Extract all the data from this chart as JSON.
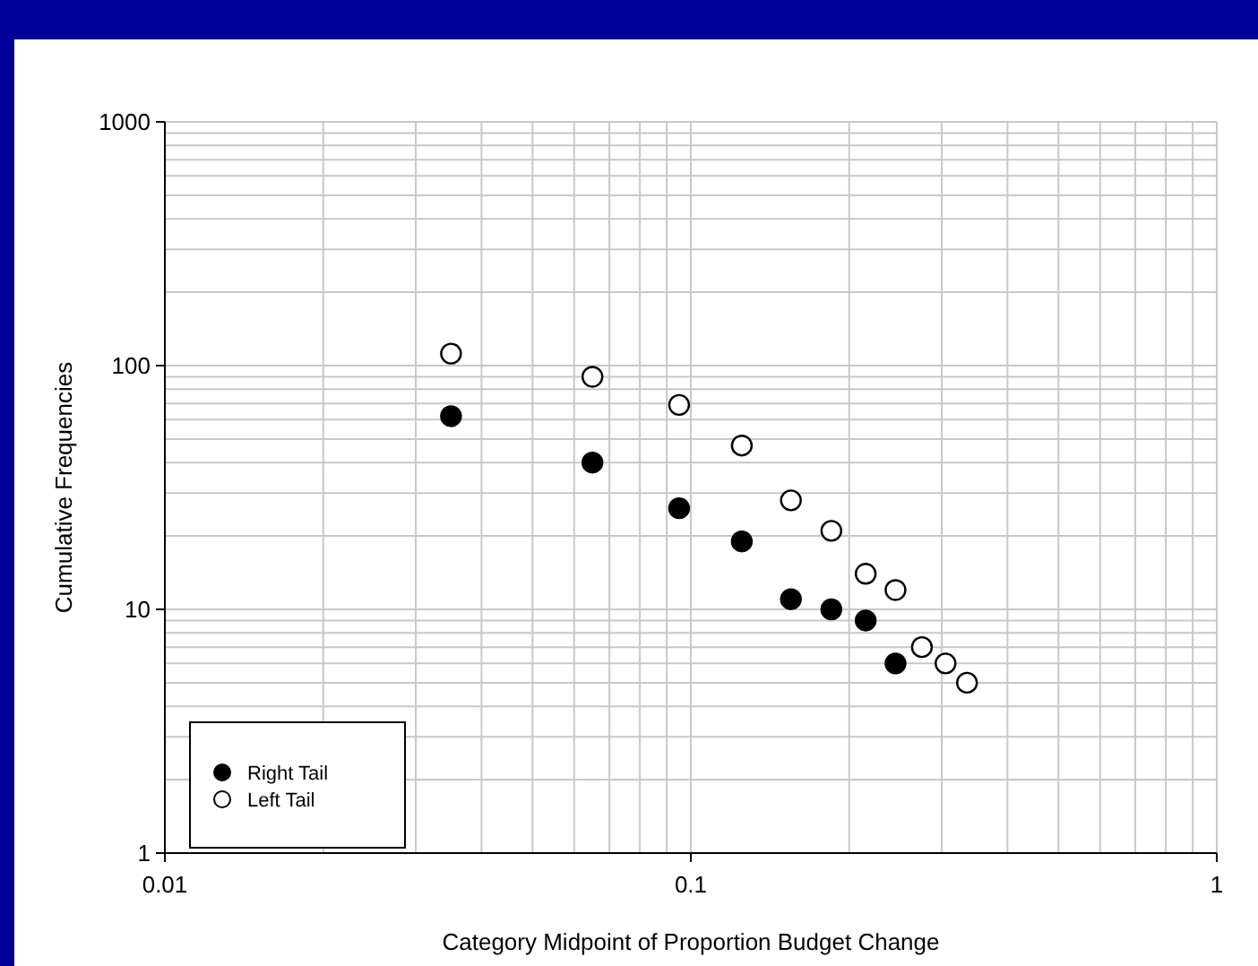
{
  "chart_data": {
    "type": "scatter",
    "xlabel": "Category Midpoint of Proportion Budget Change",
    "ylabel": "Cumulative Frequencies",
    "log": "xy",
    "grid": true,
    "legend": "bottom left",
    "marker": "circle",
    "xlim": [
      0.01,
      1
    ],
    "xticks": [
      0.01,
      0.1,
      1
    ],
    "ylim": [
      1,
      1000
    ],
    "yticks": [
      1,
      10,
      100,
      1000
    ],
    "series": [
      {
        "name": "Right Tail",
        "color": "#000000",
        "x": [
          0.035,
          0.065,
          0.095,
          0.125,
          0.155,
          0.185,
          0.215,
          0.245
        ],
        "values": [
          62,
          40,
          26,
          19,
          11,
          10,
          9,
          6
        ]
      },
      {
        "name": "Left Tail",
        "color": "#ffffff",
        "x": [
          0.035,
          0.065,
          0.095,
          0.125,
          0.155,
          0.185,
          0.215,
          0.245,
          0.275,
          0.305,
          0.335
        ],
        "values": [
          112,
          90,
          69,
          47,
          28,
          21,
          14,
          12,
          7,
          6,
          5
        ]
      }
    ]
  }
}
